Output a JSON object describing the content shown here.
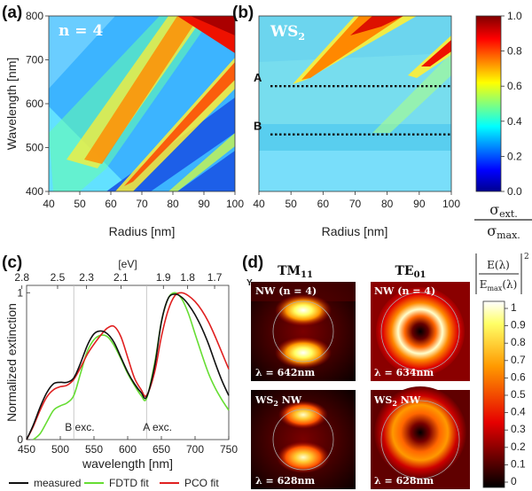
{
  "panel_labels": {
    "a": "(a)",
    "b": "(b)",
    "c": "(c)",
    "d": "(d)"
  },
  "colors": {
    "measured": "#111111",
    "fdtd": "#66dd33",
    "pco": "#e02020",
    "colormap_jet": [
      "#00008f",
      "#0000ff",
      "#00ffff",
      "#ffff00",
      "#ff0000",
      "#800000"
    ],
    "colormap_hot": [
      "#000000",
      "#e60000",
      "#ff9900",
      "#ffff66",
      "#ffffff"
    ]
  },
  "chart_data": [
    {
      "id": "a",
      "type": "heatmap",
      "inset_label": "n = 4",
      "xlabel": "Radius [nm]",
      "ylabel": "Wavelength [nm]",
      "x_ticks": [
        40,
        50,
        60,
        70,
        80,
        90,
        100
      ],
      "y_ticks": [
        400,
        500,
        600,
        700,
        800
      ],
      "xlim": [
        40,
        100
      ],
      "ylim": [
        400,
        800
      ],
      "colormap": "jet"
    },
    {
      "id": "b",
      "type": "heatmap",
      "inset_label_main": "WS",
      "inset_label_sub": "2",
      "xlabel": "Radius [nm]",
      "x_ticks": [
        40,
        50,
        60,
        70,
        80,
        90,
        100
      ],
      "xlim": [
        40,
        100
      ],
      "ylim": [
        400,
        800
      ],
      "colormap": "jet",
      "annotations": [
        {
          "label": "A",
          "wavelength": 640
        },
        {
          "label": "B",
          "wavelength": 530
        }
      ],
      "colorbar": {
        "ticks": [
          "0.0",
          "0.2",
          "0.4",
          "0.6",
          "0.8",
          "1.0"
        ],
        "range": [
          0,
          1
        ],
        "label_num": "σ",
        "label_num_sub": "ext.",
        "label_den": "σ",
        "label_den_sub": "max."
      }
    },
    {
      "id": "c",
      "type": "line",
      "xlabel": "wavelength [nm]",
      "ylabel": "Normalized extinction",
      "top_axis_label": "[eV]",
      "top_ticks": [
        "2.8",
        "2.5",
        "2.3",
        "2.1",
        "1.9",
        "1.8",
        "1.7"
      ],
      "top_tick_wavelengths": [
        443,
        496,
        539,
        590,
        653,
        689,
        729
      ],
      "x_ticks": [
        450,
        500,
        550,
        600,
        650,
        700,
        750
      ],
      "y_ticks": [
        "0",
        "1"
      ],
      "xlim": [
        450,
        750
      ],
      "ylim": [
        0,
        1.05
      ],
      "annotations": [
        {
          "label": "B exc.",
          "wavelength": 520
        },
        {
          "label": "A exc.",
          "wavelength": 628
        }
      ],
      "series": [
        {
          "name": "measured",
          "x": [
            450,
            460,
            470,
            480,
            490,
            500,
            510,
            520,
            530,
            540,
            550,
            560,
            570,
            580,
            590,
            600,
            610,
            620,
            628,
            640,
            650,
            660,
            670,
            680,
            690,
            700,
            710,
            720,
            730,
            740,
            750
          ],
          "y": [
            0.0,
            0.1,
            0.22,
            0.32,
            0.38,
            0.39,
            0.39,
            0.42,
            0.52,
            0.64,
            0.72,
            0.74,
            0.72,
            0.66,
            0.56,
            0.46,
            0.38,
            0.32,
            0.29,
            0.5,
            0.8,
            0.96,
            0.99,
            0.97,
            0.92,
            0.85,
            0.76,
            0.65,
            0.52,
            0.4,
            0.3
          ]
        },
        {
          "name": "FDTD fit",
          "x": [
            460,
            470,
            480,
            490,
            500,
            510,
            520,
            530,
            540,
            550,
            560,
            570,
            580,
            590,
            600,
            610,
            620,
            628,
            640,
            650,
            660,
            670,
            680,
            690,
            700,
            710,
            720,
            730,
            740,
            750
          ],
          "y": [
            0.0,
            0.04,
            0.12,
            0.2,
            0.23,
            0.25,
            0.3,
            0.45,
            0.6,
            0.68,
            0.71,
            0.7,
            0.64,
            0.55,
            0.45,
            0.37,
            0.3,
            0.28,
            0.52,
            0.8,
            0.96,
            1.0,
            0.96,
            0.86,
            0.72,
            0.58,
            0.45,
            0.35,
            0.27,
            0.2
          ]
        },
        {
          "name": "PCO fit",
          "x": [
            450,
            460,
            470,
            480,
            490,
            500,
            510,
            520,
            530,
            540,
            550,
            560,
            570,
            580,
            590,
            600,
            610,
            620,
            628,
            640,
            650,
            660,
            670,
            680,
            690,
            700,
            710,
            720,
            730,
            740,
            750
          ],
          "y": [
            0.0,
            0.09,
            0.2,
            0.29,
            0.34,
            0.36,
            0.37,
            0.41,
            0.49,
            0.58,
            0.65,
            0.71,
            0.76,
            0.77,
            0.7,
            0.56,
            0.42,
            0.34,
            0.3,
            0.46,
            0.7,
            0.88,
            0.98,
            1.0,
            0.98,
            0.94,
            0.88,
            0.8,
            0.7,
            0.59,
            0.48
          ]
        }
      ],
      "legend": [
        {
          "label": "measured"
        },
        {
          "label": "FDTD fit"
        },
        {
          "label": "PCO fit"
        }
      ]
    },
    {
      "id": "d",
      "type": "heatmap",
      "axis_marker": "Y",
      "column_titles": [
        {
          "main": "TM",
          "sub": "11"
        },
        {
          "main": "TE",
          "sub": "01"
        }
      ],
      "maps": [
        {
          "title": "NW (n = 4)",
          "lambda": "λ = 642nm",
          "mode": "TM"
        },
        {
          "title": "NW (n = 4)",
          "lambda": "λ = 634nm",
          "mode": "TE"
        },
        {
          "title_main": "WS",
          "title_sub": "2",
          "title_rest": " NW",
          "lambda": "λ = 628nm",
          "mode": "TM"
        },
        {
          "title_main": "WS",
          "title_sub": "2",
          "title_rest": " NW",
          "lambda": "λ = 628nm",
          "mode": "TE"
        }
      ],
      "colorbar": {
        "ticks": [
          "1",
          "0.9",
          "0.8",
          "0.7",
          "0.6",
          "0.5",
          "0.4",
          "0.3",
          "0.2",
          "0.1",
          "0"
        ],
        "range": [
          0,
          1
        ],
        "label_num": "E(λ)",
        "label_den": "E",
        "label_den_sub": "max",
        "label_den_rest": "(λ)",
        "label_power": "2"
      }
    }
  ]
}
